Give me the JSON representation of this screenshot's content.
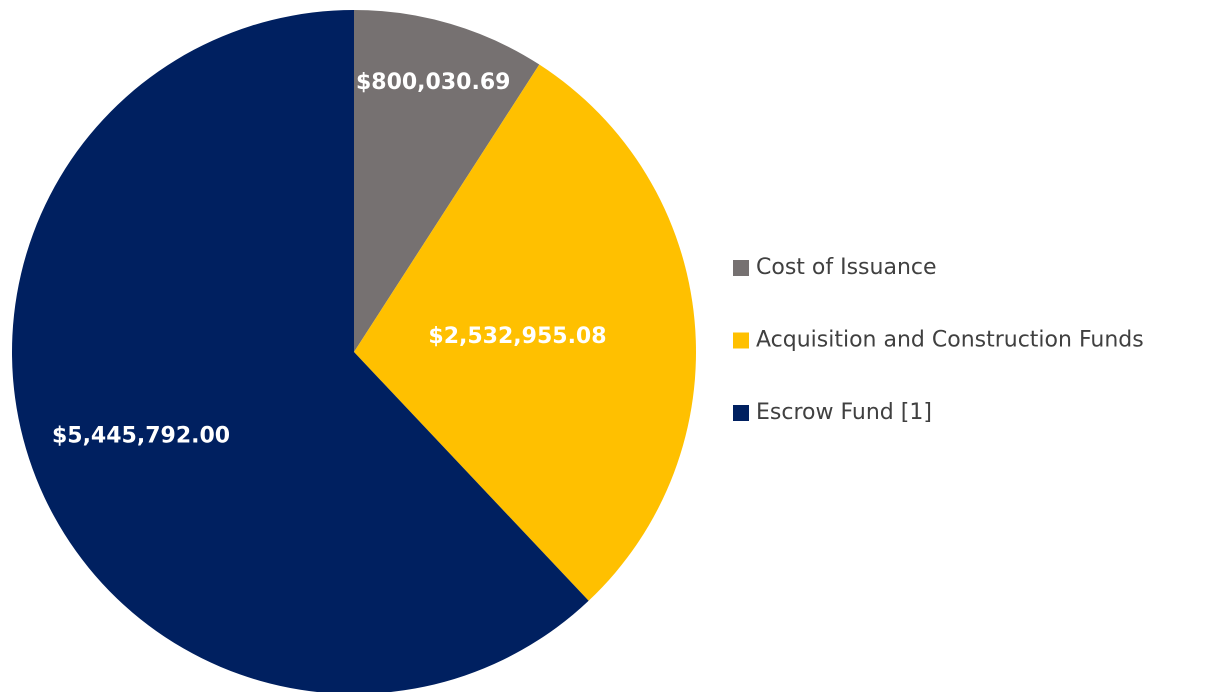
{
  "chart_data": {
    "type": "pie",
    "categories": [
      "Cost of Issuance",
      "Acquisition and Construction Funds",
      "Escrow Fund [1]"
    ],
    "values": [
      800030.69,
      2532955.08,
      5445792.0
    ],
    "value_labels": [
      "$800,030.69",
      "$2,532,955.08",
      "$5,445,792.00"
    ],
    "colors": [
      "#767171",
      "#FFC000",
      "#002060"
    ],
    "legend": "right"
  }
}
